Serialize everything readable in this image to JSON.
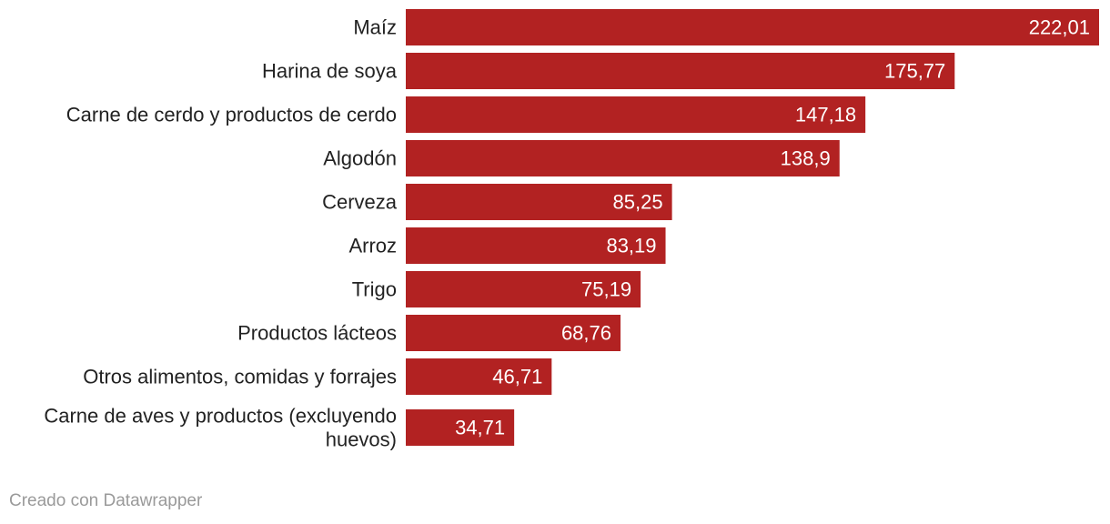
{
  "chart_data": {
    "type": "bar",
    "orientation": "horizontal",
    "categories": [
      "Maíz",
      "Harina de soya",
      "Carne de cerdo y productos de cerdo",
      "Algodón",
      "Cerveza",
      "Arroz",
      "Trigo",
      "Productos lácteos",
      "Otros alimentos, comidas y forrajes",
      [
        "Carne de aves y productos (excluyendo",
        "huevos)"
      ]
    ],
    "values": [
      222.01,
      175.77,
      147.18,
      138.9,
      85.25,
      83.19,
      75.19,
      68.76,
      46.71,
      34.71
    ],
    "value_labels": [
      "222,01",
      "175,77",
      "147,18",
      "138,9",
      "85,25",
      "83,19",
      "75,19",
      "68,76",
      "46,71",
      "34,71"
    ],
    "xlim": [
      0,
      222.01
    ],
    "title": "",
    "xlabel": "",
    "ylabel": "",
    "grid": false,
    "bar_color": "#b22222"
  },
  "footer": {
    "credit": "Creado con Datawrapper"
  }
}
